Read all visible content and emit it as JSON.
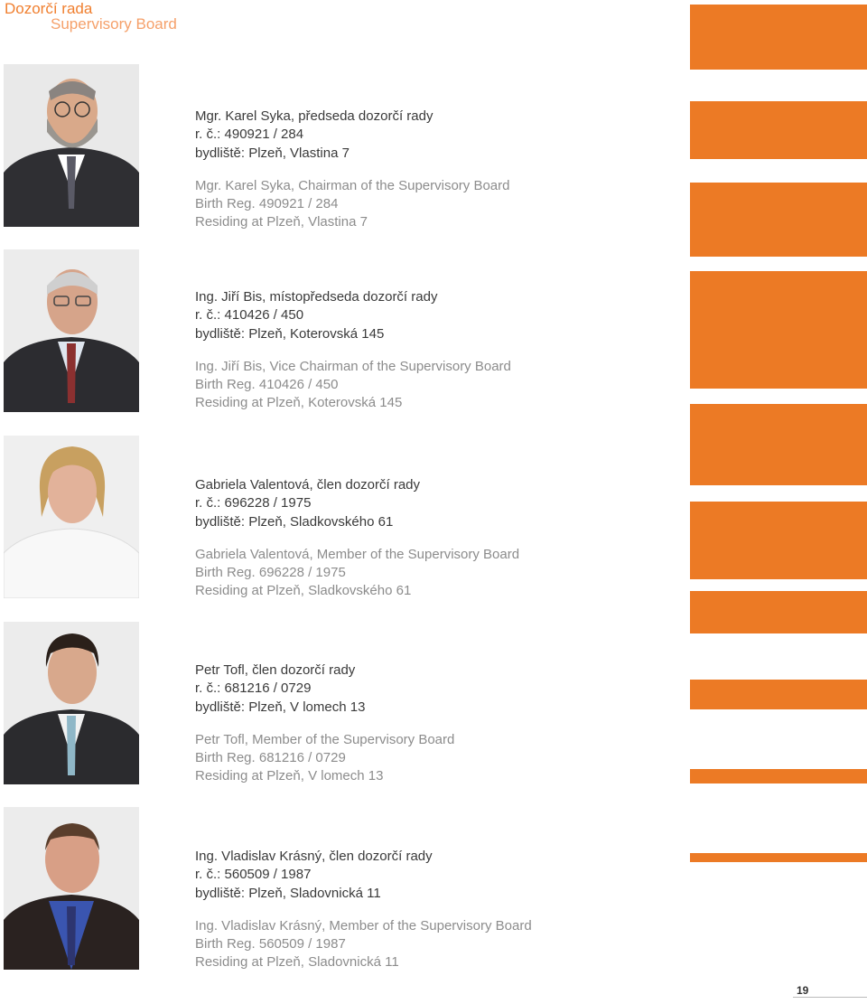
{
  "header": {
    "title_cz": "Dozorčí  rada",
    "title_en": "Supervisory  Board"
  },
  "members": [
    {
      "cz": [
        "Mgr. Karel Syka, předseda dozorčí rady",
        "r. č.: 490921 / 284",
        "bydliště: Plzeň, Vlastina 7"
      ],
      "en": [
        "Mgr. Karel Syka, Chairman of the Supervisory Board",
        "Birth Reg. 490921 / 284",
        "Residing at Plzeň, Vlastina 7"
      ]
    },
    {
      "cz": [
        "Ing. Jiří Bis, místopředseda dozorčí rady",
        "r. č.: 410426 / 450",
        "bydliště: Plzeň, Koterovská 145"
      ],
      "en": [
        "Ing. Jiří Bis, Vice Chairman of the Supervisory Board",
        "Birth Reg. 410426 / 450",
        "Residing at Plzeň, Koterovská 145"
      ]
    },
    {
      "cz": [
        "Gabriela Valentová, člen dozorčí rady",
        "r. č.: 696228 / 1975",
        "bydliště: Plzeň, Sladkovského 61"
      ],
      "en": [
        "Gabriela Valentová,  Member of the Supervisory Board",
        "Birth Reg. 696228 / 1975",
        "Residing at Plzeň, Sladkovského 61"
      ]
    },
    {
      "cz": [
        "Petr Tofl, člen dozorčí rady",
        "r. č.: 681216 / 0729",
        "bydliště: Plzeň, V lomech 13"
      ],
      "en": [
        "Petr Tofl, Member of the Supervisory Board",
        "Birth Reg. 681216 / 0729",
        "Residing at Plzeň, V lomech 13"
      ]
    },
    {
      "cz": [
        "Ing. Vladislav Krásný, člen dozorčí rady",
        "r. č.: 560509 / 1987",
        "bydliště: Plzeň, Sladovnická 11"
      ],
      "en": [
        "Ing. Vladislav Krásný, Member of the Supervisory Board",
        "Birth Reg. 560509 / 1987",
        "Residing at Plzeň, Sladovnická 11"
      ]
    }
  ],
  "colors": {
    "accent": "#ec7a25",
    "title_accent": "#f07f2f"
  },
  "footer": {
    "page_number": "19"
  }
}
